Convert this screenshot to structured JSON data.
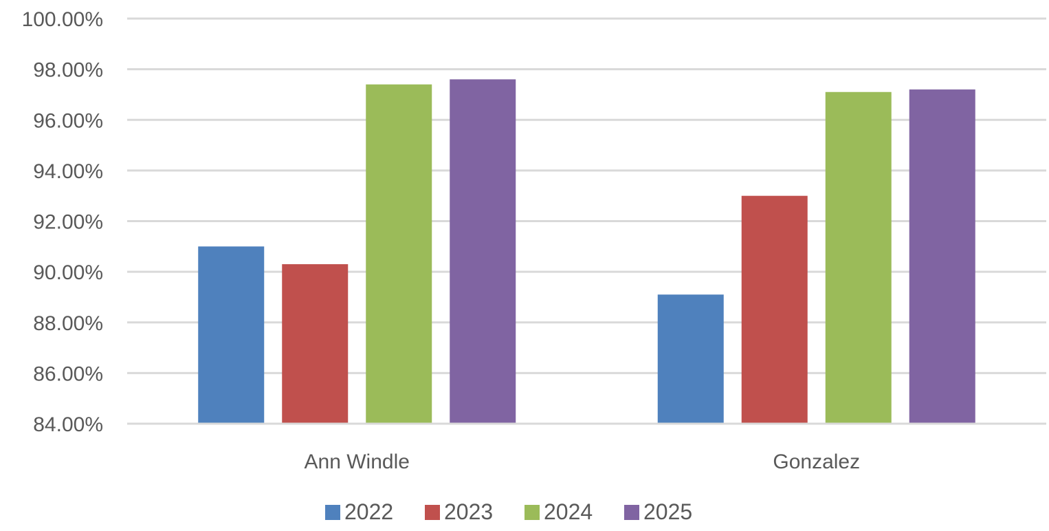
{
  "chart_data": {
    "type": "bar",
    "title": "",
    "xlabel": "",
    "ylabel": "",
    "categories": [
      "Ann Windle",
      "Gonzalez"
    ],
    "series": [
      {
        "name": "2022",
        "color": "#4F81BD",
        "values": [
          0.91,
          0.891
        ]
      },
      {
        "name": "2023",
        "color": "#C0504D",
        "values": [
          0.903,
          0.93
        ]
      },
      {
        "name": "2024",
        "color": "#9BBB59",
        "values": [
          0.974,
          0.971
        ]
      },
      {
        "name": "2025",
        "color": "#8064A2",
        "values": [
          0.976,
          0.972
        ]
      }
    ],
    "ylim": [
      0.84,
      1.0
    ],
    "yticks": [
      0.84,
      0.86,
      0.88,
      0.9,
      0.92,
      0.94,
      0.96,
      0.98,
      1.0
    ],
    "ytick_labels": [
      "84.00%",
      "86.00%",
      "88.00%",
      "90.00%",
      "92.00%",
      "94.00%",
      "96.00%",
      "98.00%",
      "100.00%"
    ],
    "grid": true,
    "legend_position": "bottom"
  }
}
